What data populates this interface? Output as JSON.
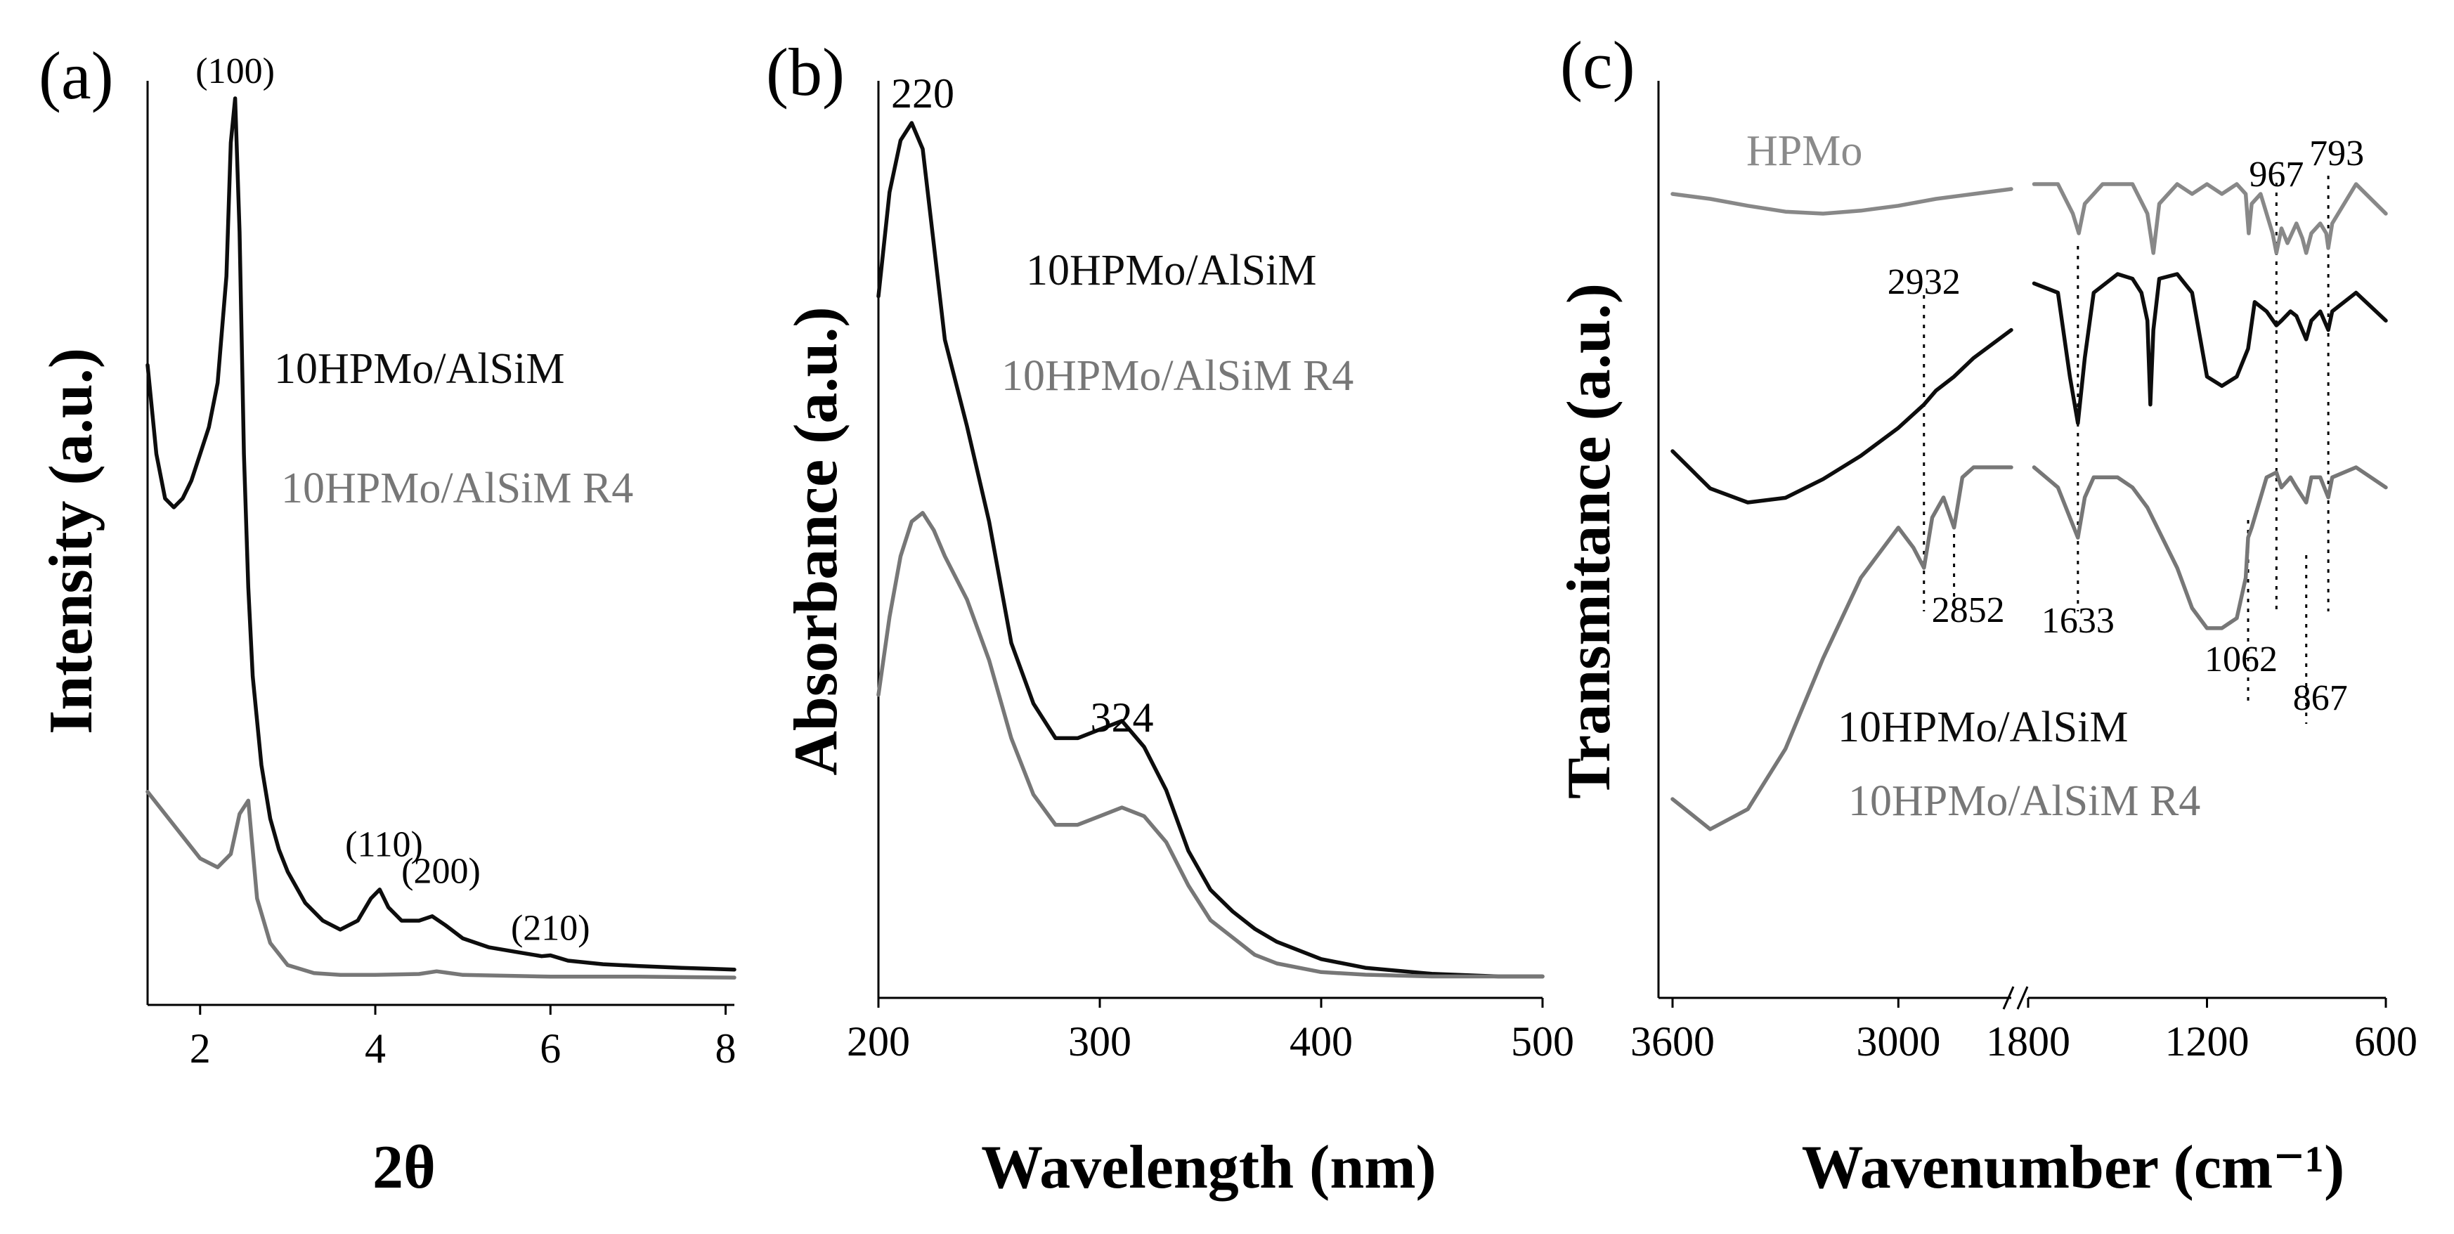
{
  "colors": {
    "black_series": "#0d0d0d",
    "gray_series": "#777777",
    "label_gray": "#8a8a8a",
    "axis": "#000000"
  },
  "chart_data": [
    {
      "type": "line",
      "panel": "(a)",
      "title": "",
      "xlabel": "2θ",
      "ylabel": "Intensity (a.u.)",
      "xlim": [
        1.4,
        8.1
      ],
      "ylim": [
        0,
        100
      ],
      "xticks": [
        2,
        4,
        6,
        8
      ],
      "tick_labels": [
        "2",
        "4",
        "6",
        "8"
      ],
      "legend": [
        {
          "label": "10HPMo/AlSiM",
          "color": "#0d0d0d"
        },
        {
          "label": "10HPMo/AlSiM R4",
          "color": "#777777"
        }
      ],
      "annotations": [
        {
          "text": "(100)",
          "x": 2.4,
          "y": 100
        },
        {
          "text": "(110)",
          "x": 4.1,
          "y": 13
        },
        {
          "text": "(200)",
          "x": 4.75,
          "y": 10
        },
        {
          "text": "(210)",
          "x": 6.0,
          "y": 3.6
        }
      ],
      "series": [
        {
          "name": "10HPMo/AlSiM",
          "color": "#0d0d0d",
          "x": [
            1.4,
            1.5,
            1.6,
            1.7,
            1.8,
            1.9,
            2.0,
            2.1,
            2.2,
            2.3,
            2.35,
            2.4,
            2.45,
            2.5,
            2.55,
            2.6,
            2.7,
            2.8,
            2.9,
            3.0,
            3.2,
            3.4,
            3.6,
            3.8,
            3.95,
            4.05,
            4.15,
            4.3,
            4.5,
            4.65,
            4.8,
            5.0,
            5.3,
            5.6,
            5.9,
            6.0,
            6.2,
            6.6,
            7.0,
            7.5,
            8.1
          ],
          "values": [
            70,
            60,
            55,
            54,
            55,
            57,
            60,
            63,
            68,
            80,
            95,
            100,
            85,
            60,
            45,
            35,
            25,
            19,
            15.5,
            13,
            9.5,
            7.5,
            6.5,
            7.5,
            10,
            11,
            9,
            7.5,
            7.5,
            8,
            7,
            5.5,
            4.5,
            4,
            3.5,
            3.6,
            3,
            2.6,
            2.4,
            2.2,
            2
          ]
        },
        {
          "name": "10HPMo/AlSiM R4",
          "color": "#777777",
          "x": [
            1.4,
            1.6,
            1.8,
            2.0,
            2.2,
            2.35,
            2.45,
            2.55,
            2.65,
            2.8,
            3.0,
            3.3,
            3.6,
            4.0,
            4.5,
            4.7,
            5.0,
            6.0,
            7.0,
            8.1
          ],
          "values": [
            22,
            19.5,
            17,
            14.5,
            13.5,
            15,
            19.5,
            21,
            10,
            5,
            2.5,
            1.6,
            1.4,
            1.4,
            1.5,
            1.8,
            1.4,
            1.2,
            1.2,
            1.1
          ]
        }
      ]
    },
    {
      "type": "line",
      "panel": "(b)",
      "title": "",
      "xlabel": "Wavelength (nm)",
      "ylabel": "Absorbance (a.u.)",
      "xlim": [
        200,
        500
      ],
      "ylim": [
        0,
        100
      ],
      "xticks": [
        200,
        300,
        400,
        500
      ],
      "tick_labels": [
        "200",
        "300",
        "400",
        "500"
      ],
      "legend": [
        {
          "label": "10HPMo/AlSiM",
          "color": "#0d0d0d"
        },
        {
          "label": "10HPMo/AlSiM R4",
          "color": "#777777"
        }
      ],
      "annotations": [
        {
          "text": "220",
          "x": 220,
          "y": 100
        },
        {
          "text": "324",
          "x": 310,
          "y": 28
        }
      ],
      "series": [
        {
          "name": "10HPMo/AlSiM",
          "color": "#0d0d0d",
          "x": [
            200,
            205,
            210,
            215,
            220,
            225,
            230,
            240,
            250,
            260,
            270,
            280,
            290,
            300,
            310,
            320,
            330,
            340,
            350,
            360,
            370,
            380,
            400,
            420,
            450,
            480,
            500
          ],
          "values": [
            80,
            92,
            98,
            100,
            97,
            86,
            75,
            65,
            54,
            40,
            33,
            29,
            29,
            30,
            31,
            28,
            23,
            16,
            11.5,
            9,
            7,
            5.5,
            3.5,
            2.5,
            1.8,
            1.5,
            1.5
          ]
        },
        {
          "name": "10HPMo/AlSiM R4",
          "color": "#777777",
          "x": [
            200,
            205,
            210,
            215,
            220,
            225,
            230,
            240,
            250,
            260,
            270,
            280,
            290,
            300,
            310,
            320,
            330,
            340,
            350,
            360,
            370,
            380,
            400,
            420,
            450,
            480,
            500
          ],
          "values": [
            34,
            43,
            50,
            54,
            55,
            53,
            50,
            45,
            38,
            29,
            22.5,
            19,
            19,
            20,
            21,
            20,
            17,
            12,
            8,
            6,
            4,
            3,
            2,
            1.7,
            1.5,
            1.5,
            1.5
          ]
        }
      ]
    },
    {
      "type": "line",
      "panel": "(c)",
      "title": "",
      "xlabel": "Wavenumber (cm⁻¹)",
      "ylabel": "Transmitance (a.u.)",
      "xlim_left_segment": [
        3600,
        2700
      ],
      "xlim_right_segment": [
        1800,
        600
      ],
      "axis_break": "//",
      "ylim": [
        0,
        100
      ],
      "xticks": [
        3600,
        3000,
        1800,
        1200,
        600
      ],
      "tick_labels": [
        "3600",
        "3000",
        "1800",
        "1200",
        "600"
      ],
      "legend": [
        {
          "label": "HPMo",
          "color": "#8a8a8a"
        },
        {
          "label": "10HPMo/AlSiM",
          "color": "#0d0d0d"
        },
        {
          "label": "10HPMo/AlSiM R4",
          "color": "#777777"
        }
      ],
      "peak_labels": [
        "2932",
        "2852",
        "1633",
        "1062",
        "967",
        "867",
        "793"
      ],
      "peak_positions": [
        2932,
        2852,
        1633,
        1062,
        967,
        867,
        793
      ],
      "series": [
        {
          "name": "HPMo",
          "color": "#888888",
          "x": [
            3600,
            3500,
            3400,
            3300,
            3200,
            3100,
            3000,
            2900,
            2800,
            2700,
            1780,
            1700,
            1650,
            1630,
            1610,
            1550,
            1450,
            1400,
            1380,
            1360,
            1300,
            1250,
            1200,
            1150,
            1100,
            1070,
            1060,
            1050,
            1020,
            1000,
            980,
            967,
            950,
            930,
            900,
            880,
            867,
            850,
            820,
            800,
            793,
            780,
            700,
            600
          ],
          "values": [
            90,
            89.5,
            88.8,
            88.2,
            88,
            88.3,
            88.8,
            89.5,
            90,
            90.5,
            91,
            91,
            88,
            86,
            89,
            91,
            91,
            88,
            84,
            89,
            91,
            90,
            91,
            90,
            91,
            90,
            86,
            89,
            90,
            88,
            86,
            84,
            86.5,
            85,
            87,
            85.5,
            84,
            86,
            87,
            86,
            84.5,
            87,
            91,
            88
          ]
        },
        {
          "name": "10HPMo/AlSiM",
          "color": "#0d0d0d",
          "x": [
            3600,
            3500,
            3400,
            3300,
            3200,
            3100,
            3000,
            2932,
            2900,
            2852,
            2800,
            2700,
            1780,
            1700,
            1660,
            1633,
            1610,
            1580,
            1500,
            1450,
            1420,
            1400,
            1390,
            1380,
            1360,
            1300,
            1250,
            1200,
            1150,
            1100,
            1062,
            1040,
            1000,
            967,
            950,
            920,
            900,
            867,
            850,
            820,
            793,
            780,
            700,
            600
          ],
          "values": [
            57,
            53,
            51.5,
            52,
            54,
            56.5,
            59.5,
            62,
            63.5,
            65,
            67,
            70,
            75,
            74,
            65,
            60,
            67,
            74,
            76,
            75.5,
            74,
            71,
            62,
            70,
            75.5,
            76,
            74,
            65,
            64,
            65,
            68,
            73,
            72,
            70.5,
            71,
            72,
            71.5,
            69,
            71,
            72,
            70,
            72,
            74,
            71
          ]
        },
        {
          "name": "10HPMo/AlSiM R4",
          "color": "#777777",
          "x": [
            3600,
            3500,
            3400,
            3300,
            3200,
            3100,
            3000,
            2960,
            2932,
            2910,
            2880,
            2852,
            2830,
            2800,
            2750,
            2700,
            1780,
            1700,
            1660,
            1633,
            1610,
            1580,
            1500,
            1450,
            1400,
            1350,
            1300,
            1250,
            1200,
            1150,
            1100,
            1070,
            1062,
            1050,
            1000,
            967,
            950,
            920,
            900,
            867,
            850,
            820,
            793,
            780,
            700,
            600
          ],
          "values": [
            24,
            21,
            23,
            29,
            38,
            46,
            51,
            49,
            47,
            52,
            54,
            51,
            56,
            57,
            57,
            57,
            57,
            55,
            52,
            50,
            54,
            56,
            56,
            55,
            53,
            50,
            47,
            43,
            41,
            41,
            42,
            46,
            50,
            51,
            56,
            56.5,
            55,
            56,
            55,
            53.5,
            56,
            56,
            54,
            56,
            57,
            55
          ]
        }
      ]
    }
  ]
}
